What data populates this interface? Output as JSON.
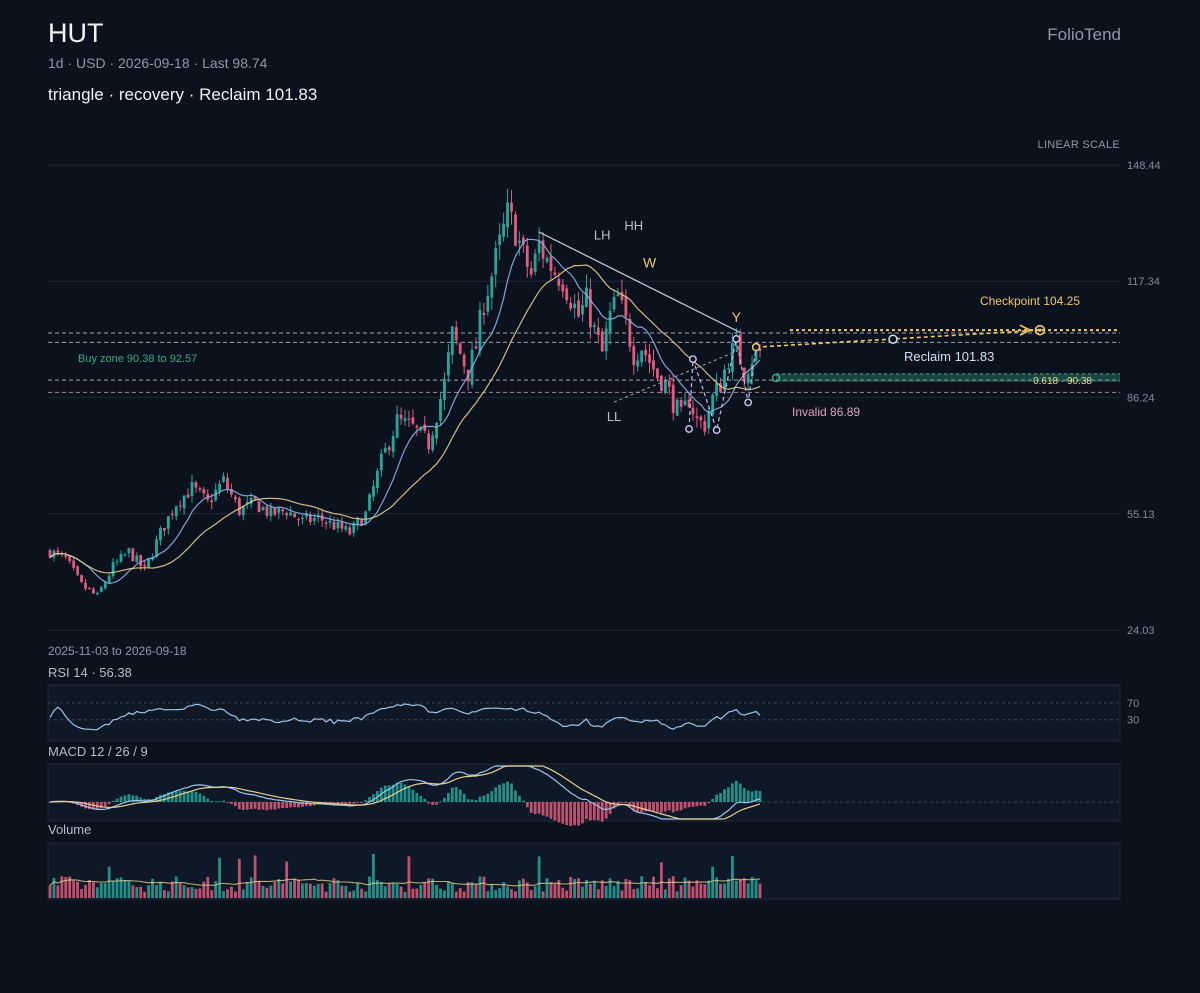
{
  "header": {
    "ticker": "HUT",
    "meta": "1d · USD · 2026-09-18 · Last 98.74",
    "subtitle": "triangle · recovery · Reclaim 101.83",
    "brand": "FolioTend",
    "scale_label": "LINEAR SCALE",
    "date_range": "2025-11-03 to 2026-09-18"
  },
  "colors": {
    "background": "#0b121d",
    "up": "#26a69a",
    "down": "#e05b7c",
    "ma_fast": "#8fb3e8",
    "ma_slow": "#e6cf8f",
    "checkpoint": "#f0c868",
    "reclaim": "#cfe0f0",
    "invalid": "#e0a0c0",
    "buy_zone": "#3aa886"
  },
  "chart_data": {
    "type": "candlestick",
    "symbol": "HUT",
    "interval": "1d",
    "currency": "USD",
    "start_date": "2025-11-03",
    "end_date": "2026-09-18",
    "last": 98.74,
    "scale": "linear",
    "y_ticks": [
      148.44,
      117.34,
      86.24,
      55.13,
      24.03
    ],
    "ylim": [
      24.03,
      148.44
    ],
    "anchors": [
      [
        0,
        45
      ],
      [
        4,
        43
      ],
      [
        8,
        36
      ],
      [
        12,
        33
      ],
      [
        16,
        41
      ],
      [
        20,
        45
      ],
      [
        24,
        40
      ],
      [
        28,
        50
      ],
      [
        32,
        58
      ],
      [
        36,
        62
      ],
      [
        40,
        58
      ],
      [
        44,
        64
      ],
      [
        48,
        56
      ],
      [
        52,
        58
      ],
      [
        56,
        55
      ],
      [
        60,
        56
      ],
      [
        64,
        53
      ],
      [
        68,
        54
      ],
      [
        72,
        52
      ],
      [
        76,
        50
      ],
      [
        80,
        55
      ],
      [
        84,
        69
      ],
      [
        88,
        80
      ],
      [
        92,
        78
      ],
      [
        96,
        74
      ],
      [
        100,
        90
      ],
      [
        102,
        103
      ],
      [
        104,
        98
      ],
      [
        106,
        93
      ],
      [
        108,
        100
      ],
      [
        110,
        112
      ],
      [
        112,
        119
      ],
      [
        114,
        127
      ],
      [
        116,
        135
      ],
      [
        118,
        131
      ],
      [
        120,
        124
      ],
      [
        122,
        119
      ],
      [
        124,
        127
      ],
      [
        126,
        123
      ],
      [
        128,
        120
      ],
      [
        130,
        118
      ],
      [
        132,
        113
      ],
      [
        134,
        108
      ],
      [
        136,
        112
      ],
      [
        138,
        104
      ],
      [
        140,
        98
      ],
      [
        142,
        108
      ],
      [
        144,
        113
      ],
      [
        146,
        106
      ],
      [
        148,
        98
      ],
      [
        150,
        100
      ],
      [
        152,
        96
      ],
      [
        154,
        92
      ],
      [
        156,
        90
      ],
      [
        158,
        85
      ],
      [
        160,
        81
      ],
      [
        162,
        86
      ],
      [
        164,
        80
      ],
      [
        166,
        79
      ],
      [
        168,
        86
      ],
      [
        170,
        90
      ],
      [
        172,
        97
      ],
      [
        174,
        100
      ],
      [
        176,
        93
      ],
      [
        178,
        97
      ],
      [
        180,
        99
      ]
    ],
    "patterns": {
      "triangle_upper": [
        [
          124,
          130.5
        ],
        [
          175,
          103.6
        ]
      ],
      "triangle_lower": [
        [
          143,
          85.0
        ],
        [
          175,
          99.0
        ]
      ],
      "swing_labels": [
        {
          "text": "LH",
          "x": 140,
          "y": 128.5
        },
        {
          "text": "HH",
          "x": 148,
          "y": 131
        },
        {
          "text": "W",
          "x": 152,
          "y": 121
        },
        {
          "text": "LL",
          "x": 143,
          "y": 80
        },
        {
          "text": "Y",
          "x": 174,
          "y": 106.5
        }
      ],
      "points": [
        {
          "x": 163,
          "y": 96.5
        },
        {
          "x": 174,
          "y": 101.9
        },
        {
          "x": 179,
          "y": 99.7
        },
        {
          "x": 162,
          "y": 77.8
        },
        {
          "x": 169,
          "y": 77.5
        },
        {
          "x": 177,
          "y": 84.9
        }
      ]
    },
    "levels": {
      "dashed_lines": [
        103.5,
        101.0,
        90.9,
        87.6
      ],
      "checkpoint": {
        "label": "Checkpoint 104.25",
        "value": 104.25
      },
      "reclaim": {
        "label": "Reclaim 101.83",
        "value": 101.83
      },
      "invalid": {
        "label": "Invalid 86.89",
        "value": 86.89
      },
      "buy_zone": {
        "label": "Buy zone 90.38 to 92.57",
        "low": 90.38,
        "high": 92.57
      },
      "fib": {
        "label": "0.618 · 90.38",
        "value": 90.38
      }
    },
    "rsi": {
      "label": "RSI 14 · 56.38",
      "levels": [
        70,
        30
      ],
      "last": 56.38
    },
    "macd": {
      "label": "MACD 12 / 26 / 9"
    },
    "volume": {
      "label": "Volume"
    }
  }
}
